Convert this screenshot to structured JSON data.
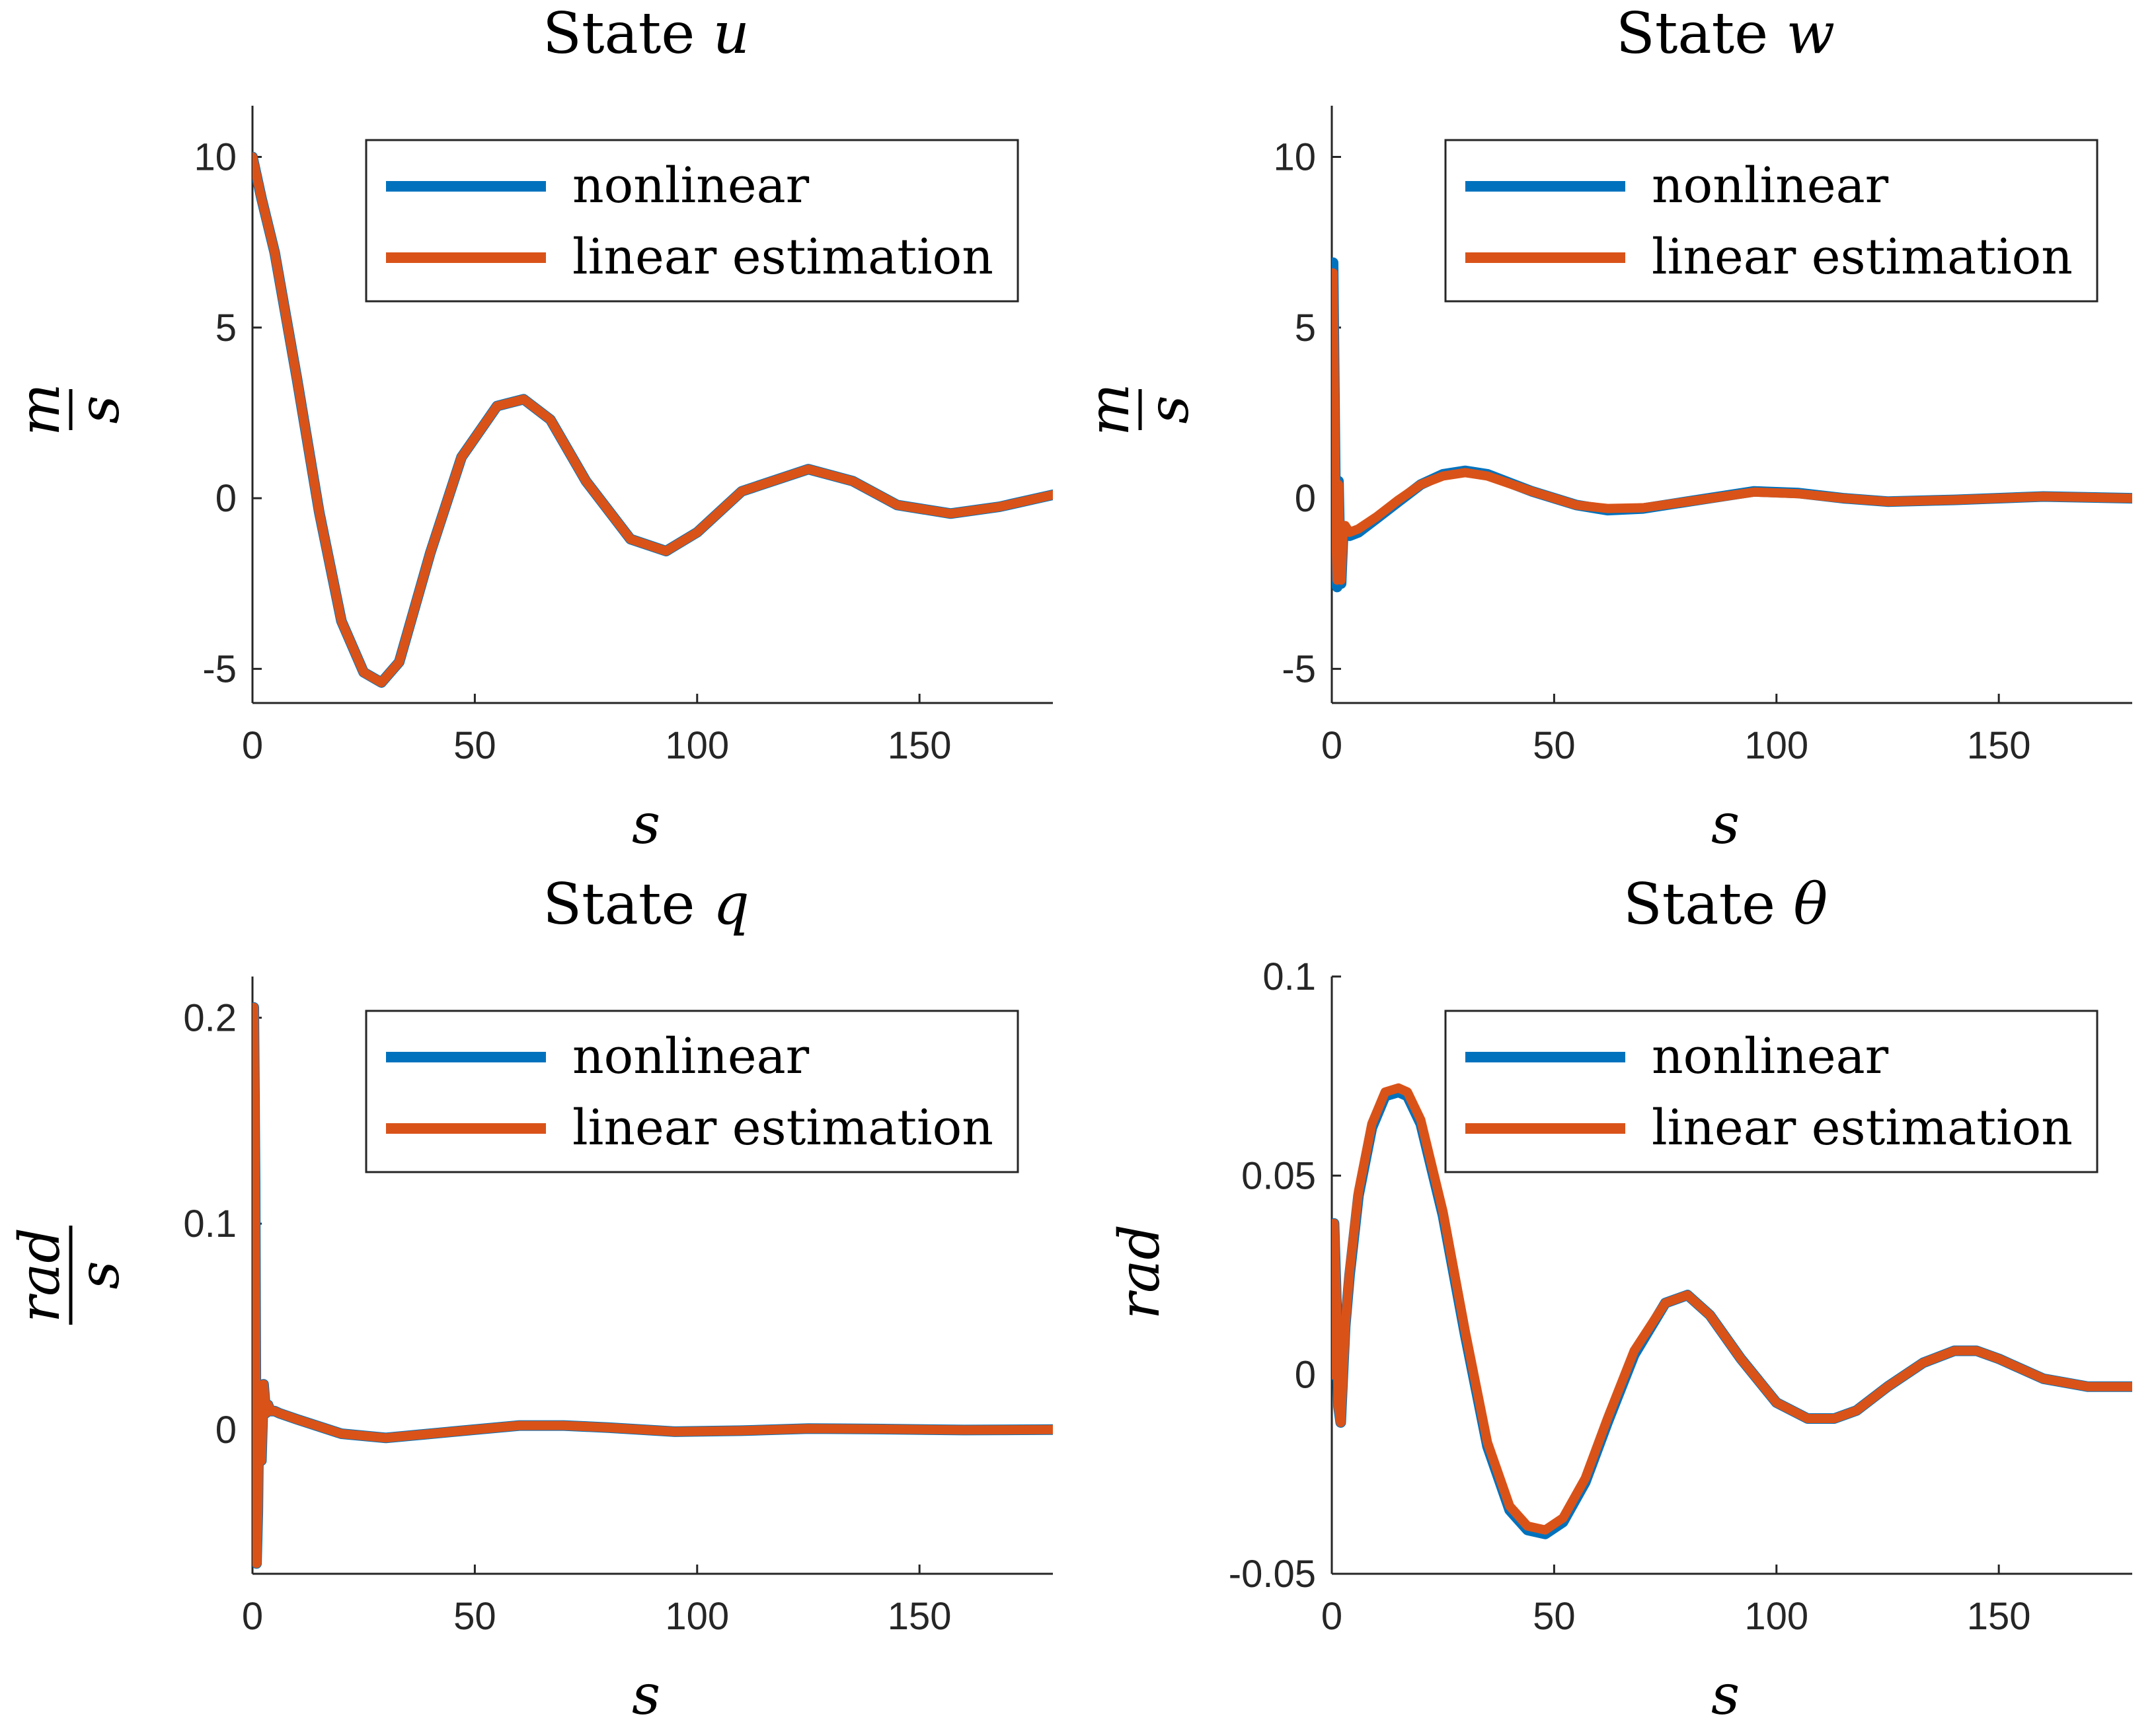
{
  "chart_data": [
    {
      "type": "line",
      "title_prefix": "State",
      "title_var": "u",
      "xlabel": "s",
      "ylabel_num": "m",
      "ylabel_den": "s",
      "xlim": [
        0,
        180
      ],
      "ylim": [
        -6,
        11.5
      ],
      "xticks": [
        0,
        50,
        100,
        150
      ],
      "xtick_labels": [
        "0",
        "50",
        "100",
        "150"
      ],
      "yticks": [
        -5,
        0,
        5,
        10
      ],
      "ytick_labels": [
        "-5",
        "0",
        "5",
        "10"
      ],
      "legend_position": "top-right",
      "series": [
        {
          "name": "nonlinear",
          "color": "#0072BD",
          "x": [
            0,
            2,
            5,
            10,
            15,
            20,
            25,
            29,
            33,
            40,
            47,
            55,
            61,
            67,
            75,
            85,
            93,
            100,
            110,
            125,
            135,
            145,
            157,
            168,
            180
          ],
          "y": [
            10,
            8.8,
            7.2,
            3.5,
            -0.4,
            -3.6,
            -5.1,
            -5.4,
            -4.8,
            -1.6,
            1.2,
            2.7,
            2.9,
            2.3,
            0.5,
            -1.2,
            -1.55,
            -1.0,
            0.2,
            0.85,
            0.5,
            -0.2,
            -0.45,
            -0.25,
            0.1
          ]
        },
        {
          "name": "linear estimation",
          "color": "#D95319",
          "x": [
            0,
            2,
            5,
            10,
            15,
            20,
            25,
            29,
            33,
            40,
            47,
            55,
            61,
            67,
            75,
            85,
            93,
            100,
            110,
            125,
            135,
            145,
            157,
            168,
            180
          ],
          "y": [
            10,
            8.8,
            7.2,
            3.5,
            -0.4,
            -3.6,
            -5.1,
            -5.4,
            -4.8,
            -1.6,
            1.2,
            2.7,
            2.9,
            2.3,
            0.5,
            -1.2,
            -1.55,
            -1.0,
            0.2,
            0.85,
            0.5,
            -0.2,
            -0.45,
            -0.25,
            0.1
          ]
        }
      ]
    },
    {
      "type": "line",
      "title_prefix": "State",
      "title_var": "w",
      "xlabel": "s",
      "ylabel_num": "m",
      "ylabel_den": "s",
      "xlim": [
        0,
        180
      ],
      "ylim": [
        -6,
        11.5
      ],
      "xticks": [
        0,
        50,
        100,
        150
      ],
      "xtick_labels": [
        "0",
        "50",
        "100",
        "150"
      ],
      "yticks": [
        -5,
        0,
        5,
        10
      ],
      "ytick_labels": [
        "-5",
        "0",
        "5",
        "10"
      ],
      "legend_position": "top-right",
      "series": [
        {
          "name": "nonlinear",
          "color": "#0072BD",
          "x": [
            0,
            0.3,
            0.6,
            0.9,
            1.2,
            1.5,
            1.8,
            2.1,
            2.5,
            3,
            4,
            6,
            10,
            15,
            20,
            25,
            30,
            35,
            45,
            55,
            62,
            70,
            80,
            95,
            105,
            115,
            125,
            140,
            160,
            180
          ],
          "y": [
            5.2,
            6.9,
            3.0,
            -1.0,
            -2.6,
            0.5,
            -1.4,
            -2.5,
            -1.2,
            -0.9,
            -1.1,
            -1.0,
            -0.6,
            -0.1,
            0.4,
            0.7,
            0.8,
            0.7,
            0.2,
            -0.2,
            -0.35,
            -0.3,
            -0.1,
            0.2,
            0.15,
            0.0,
            -0.1,
            -0.05,
            0.05,
            0.0
          ]
        },
        {
          "name": "linear estimation",
          "color": "#D95319",
          "x": [
            0,
            0.3,
            0.6,
            0.9,
            1.2,
            1.5,
            1.8,
            2.1,
            2.5,
            3,
            4,
            6,
            10,
            15,
            20,
            25,
            30,
            35,
            45,
            55,
            62,
            70,
            80,
            95,
            105,
            115,
            125,
            140,
            160,
            180
          ],
          "y": [
            5.3,
            6.6,
            2.8,
            -0.9,
            -2.4,
            0.4,
            -1.3,
            -2.4,
            -1.1,
            -0.8,
            -1.0,
            -0.9,
            -0.55,
            -0.05,
            0.4,
            0.65,
            0.75,
            0.65,
            0.2,
            -0.2,
            -0.3,
            -0.28,
            -0.1,
            0.18,
            0.13,
            0.0,
            -0.1,
            -0.05,
            0.05,
            0.0
          ]
        }
      ]
    },
    {
      "type": "line",
      "title_prefix": "State",
      "title_var": "q",
      "xlabel": "s",
      "ylabel_num": "rad",
      "ylabel_den": "s",
      "xlim": [
        0,
        180
      ],
      "ylim": [
        -0.07,
        0.22
      ],
      "xticks": [
        0,
        50,
        100,
        150
      ],
      "xtick_labels": [
        "0",
        "50",
        "100",
        "150"
      ],
      "yticks": [
        0,
        0.1,
        0.2
      ],
      "ytick_labels": [
        "0",
        "0.1",
        "0.2"
      ],
      "legend_position": "top-right",
      "series": [
        {
          "name": "nonlinear",
          "color": "#0072BD",
          "x": [
            0,
            0.3,
            0.6,
            0.9,
            1.2,
            1.5,
            2,
            2.5,
            3,
            3.5,
            4,
            5,
            6,
            10,
            20,
            30,
            45,
            60,
            70,
            80,
            95,
            110,
            125,
            140,
            160,
            180
          ],
          "y": [
            0.0,
            0.205,
            0.12,
            -0.065,
            -0.04,
            0.02,
            -0.015,
            0.022,
            0.008,
            0.012,
            0.009,
            0.009,
            0.008,
            0.005,
            -0.002,
            -0.004,
            -0.001,
            0.002,
            0.002,
            0.001,
            -0.001,
            -0.0005,
            0.0005,
            0.0003,
            -0.0002,
            0.0
          ]
        },
        {
          "name": "linear estimation",
          "color": "#D95319",
          "x": [
            0,
            0.3,
            0.6,
            0.9,
            1.2,
            1.5,
            2,
            2.5,
            3,
            3.5,
            4,
            5,
            6,
            10,
            20,
            30,
            45,
            60,
            70,
            80,
            95,
            110,
            125,
            140,
            160,
            180
          ],
          "y": [
            0.0,
            0.205,
            0.12,
            -0.065,
            -0.04,
            0.02,
            -0.015,
            0.022,
            0.008,
            0.012,
            0.009,
            0.009,
            0.008,
            0.005,
            -0.002,
            -0.004,
            -0.001,
            0.002,
            0.002,
            0.001,
            -0.001,
            -0.0005,
            0.0005,
            0.0003,
            -0.0002,
            0.0
          ]
        }
      ]
    },
    {
      "type": "line",
      "title_prefix": "State",
      "title_var": "θ",
      "xlabel": "s",
      "ylabel_num": "rad",
      "ylabel_den": "",
      "xlim": [
        0,
        180
      ],
      "ylim": [
        -0.05,
        0.1
      ],
      "xticks": [
        0,
        50,
        100,
        150
      ],
      "xtick_labels": [
        "0",
        "50",
        "100",
        "150"
      ],
      "yticks": [
        -0.05,
        0,
        0.05,
        0.1
      ],
      "ytick_labels": [
        "-0.05",
        "0",
        "0.05",
        "0.1"
      ],
      "legend_position": "top-right",
      "series": [
        {
          "name": "nonlinear",
          "color": "#0072BD",
          "x": [
            0,
            0.5,
            1,
            1.5,
            2,
            2.5,
            3,
            4,
            6,
            9,
            12,
            15,
            17,
            20,
            25,
            30,
            35,
            40,
            44,
            48,
            52,
            57,
            62,
            68,
            75,
            80,
            85,
            92,
            100,
            107,
            113,
            118,
            125,
            133,
            140,
            145,
            150,
            160,
            170,
            180
          ],
          "y": [
            0.0,
            0.038,
            0.02,
            -0.008,
            -0.012,
            0.0,
            0.012,
            0.025,
            0.045,
            0.062,
            0.07,
            0.071,
            0.07,
            0.063,
            0.04,
            0.01,
            -0.018,
            -0.034,
            -0.039,
            -0.04,
            -0.037,
            -0.027,
            -0.012,
            0.005,
            0.018,
            0.02,
            0.015,
            0.004,
            -0.007,
            -0.011,
            -0.011,
            -0.009,
            -0.003,
            0.003,
            0.006,
            0.006,
            0.004,
            -0.001,
            -0.003,
            -0.003
          ]
        },
        {
          "name": "linear estimation",
          "color": "#D95319",
          "x": [
            0,
            0.5,
            1,
            1.5,
            2,
            2.5,
            3,
            4,
            6,
            9,
            12,
            15,
            17,
            20,
            25,
            30,
            35,
            40,
            44,
            48,
            52,
            57,
            62,
            68,
            75,
            80,
            85,
            92,
            100,
            107,
            113,
            118,
            125,
            133,
            140,
            145,
            150,
            160,
            170,
            180
          ],
          "y": [
            0.0,
            0.038,
            0.02,
            -0.008,
            -0.012,
            0.0,
            0.012,
            0.026,
            0.046,
            0.063,
            0.071,
            0.072,
            0.071,
            0.064,
            0.041,
            0.011,
            -0.017,
            -0.033,
            -0.038,
            -0.039,
            -0.036,
            -0.026,
            -0.011,
            0.006,
            0.018,
            0.02,
            0.015,
            0.004,
            -0.007,
            -0.011,
            -0.011,
            -0.009,
            -0.003,
            0.003,
            0.006,
            0.006,
            0.004,
            -0.001,
            -0.003,
            -0.003
          ]
        }
      ]
    }
  ]
}
